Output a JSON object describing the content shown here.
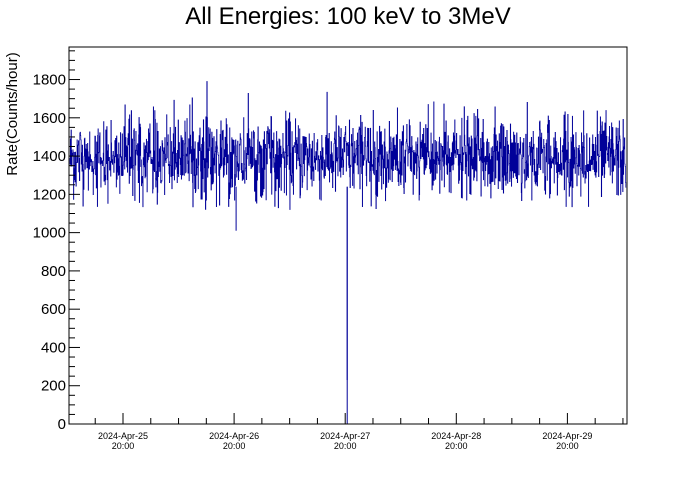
{
  "chart_data": {
    "type": "line",
    "title": "All Energies:  100 keV to 3MeV",
    "xlabel": "",
    "ylabel": "Rate(Counts/hour)",
    "ylim": [
      0,
      1970
    ],
    "xlim": [
      0,
      5.5
    ],
    "yticks": [
      0,
      200,
      400,
      600,
      800,
      1000,
      1200,
      1400,
      1600,
      1800
    ],
    "yticks_labels": [
      "0",
      "200",
      "400",
      "600",
      "800",
      "1000",
      "1200",
      "1400",
      "1600",
      "1800"
    ],
    "xticks": [
      {
        "date": "2024-Apr-25",
        "time": "20:00"
      },
      {
        "date": "2024-Apr-26",
        "time": "20:00"
      },
      {
        "date": "2024-Apr-27",
        "time": "20:00"
      },
      {
        "date": "2024-Apr-28",
        "time": "20:00"
      },
      {
        "date": "2024-Apr-29",
        "time": "20:00"
      }
    ],
    "series": [
      {
        "color": "#000099",
        "baseline": 1390,
        "noise_range": [
          1120,
          1800
        ],
        "outliers": [
          {
            "x": "2024-Apr-26 20:00",
            "y": 1010
          },
          {
            "x": "2024-Apr-27 20:00",
            "y": 460
          },
          {
            "x": "2024-Apr-27 20:00",
            "y": 230
          }
        ]
      }
    ],
    "grid": false,
    "legend": "none"
  }
}
